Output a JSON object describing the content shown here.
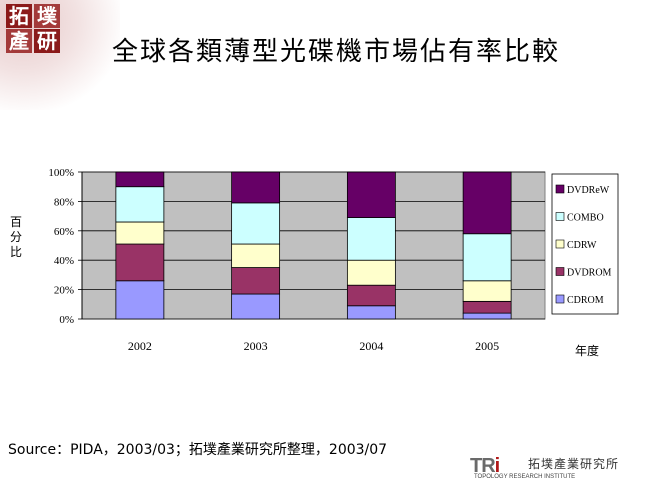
{
  "logo": {
    "chars": [
      "拓",
      "墣",
      "產",
      "研"
    ]
  },
  "slide": {
    "title": "全球各類薄型光碟機市場佔有率比較"
  },
  "source_note": "Source：PIDA，2003/03；拓墣產業研究所整理，2003/07",
  "footer": {
    "mark_tr": "TR",
    "mark_i": "i",
    "org_name": "拓墣產業研究所",
    "org_name_en": "TOPOLOGY RESEARCH INSTITUTE"
  },
  "colors": {
    "plot_bg": "#c0c0c0",
    "bar_outline": "#000000",
    "CDROM": "#9999ff",
    "DVDROM": "#993366",
    "CDRW": "#ffffcc",
    "COMBO": "#ccffff",
    "DVDReW": "#660066"
  },
  "chart_data": {
    "type": "bar",
    "stacked": true,
    "title": "",
    "xlabel": "年度",
    "ylabel": "百分比",
    "ylim": [
      0,
      100
    ],
    "ytick_labels": [
      "0%",
      "20%",
      "40%",
      "60%",
      "80%",
      "100%"
    ],
    "yticks": [
      0,
      20,
      40,
      60,
      80,
      100
    ],
    "categories": [
      "2002",
      "2003",
      "2004",
      "2005"
    ],
    "series": [
      {
        "name": "CDROM",
        "values": [
          26,
          17,
          9,
          4
        ]
      },
      {
        "name": "DVDROM",
        "values": [
          25,
          18,
          14,
          8
        ]
      },
      {
        "name": "CDRW",
        "values": [
          15,
          16,
          17,
          14
        ]
      },
      {
        "name": "COMBO",
        "values": [
          24,
          28,
          29,
          32
        ]
      },
      {
        "name": "DVDReW",
        "values": [
          10,
          21,
          31,
          42
        ]
      }
    ],
    "legend_order": [
      "DVDReW",
      "COMBO",
      "CDRW",
      "DVDROM",
      "CDROM"
    ],
    "legend_position": "right",
    "grid": true
  }
}
